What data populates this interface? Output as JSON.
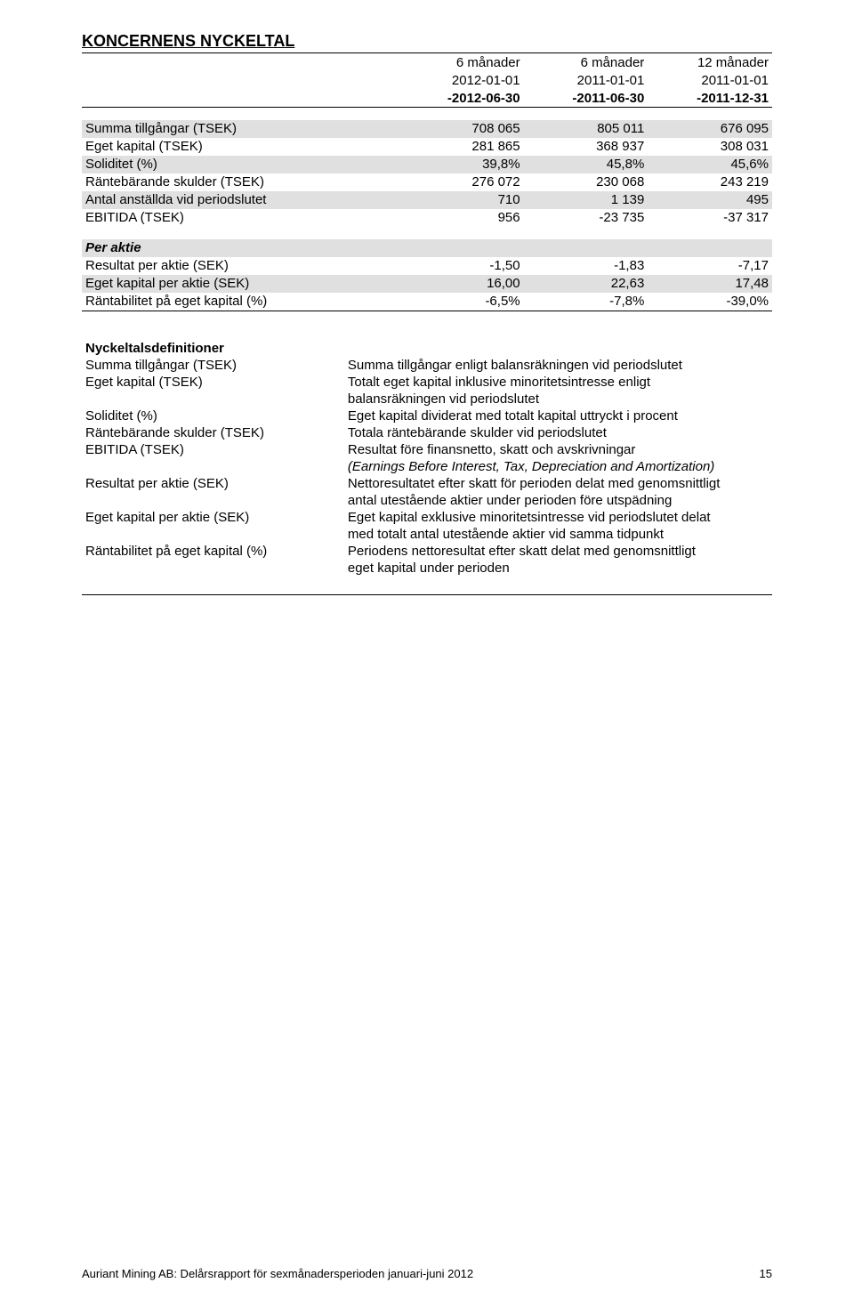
{
  "title": "KONCERNENS NYCKELTAL",
  "header": {
    "c1_line1": "6 månader",
    "c2_line1": "6 månader",
    "c3_line1": "12 månader",
    "c1_line2": "2012-01-01",
    "c2_line2": "2011-01-01",
    "c3_line2": "2011-01-01",
    "c1_line3": "-2012-06-30",
    "c2_line3": "-2011-06-30",
    "c3_line3": "-2011-12-31"
  },
  "rows_main": [
    {
      "label": "Summa tillgångar (TSEK)",
      "v1": "708 065",
      "v2": "805 011",
      "v3": "676 095",
      "hl": true
    },
    {
      "label": "Eget kapital (TSEK)",
      "v1": "281 865",
      "v2": "368 937",
      "v3": "308 031",
      "hl": false
    },
    {
      "label": "Soliditet (%)",
      "v1": "39,8%",
      "v2": "45,8%",
      "v3": "45,6%",
      "hl": true
    },
    {
      "label": "Räntebärande skulder (TSEK)",
      "v1": "276 072",
      "v2": "230 068",
      "v3": "243 219",
      "hl": false
    },
    {
      "label": "Antal anställda vid periodslutet",
      "v1": "710",
      "v2": "1 139",
      "v3": "495",
      "hl": true
    },
    {
      "label": "EBITIDA (TSEK)",
      "v1": "956",
      "v2": "-23 735",
      "v3": "-37 317",
      "hl": false
    }
  ],
  "per_aktie_heading": "Per aktie",
  "rows_per_aktie": [
    {
      "label": "Resultat per aktie (SEK)",
      "v1": "-1,50",
      "v2": "-1,83",
      "v3": "-7,17",
      "hl": false
    },
    {
      "label": "Eget kapital per aktie (SEK)",
      "v1": "16,00",
      "v2": "22,63",
      "v3": "17,48",
      "hl": true
    },
    {
      "label": "Räntabilitet på eget kapital (%)",
      "v1": "-6,5%",
      "v2": "-7,8%",
      "v3": "-39,0%",
      "hl": false
    }
  ],
  "def_heading": "Nyckeltalsdefinitioner",
  "defs": [
    {
      "label": "Summa tillgångar (TSEK)",
      "text1": "Summa tillgångar enligt balansräkningen vid periodslutet"
    },
    {
      "label": "Eget kapital (TSEK)",
      "text1": "Totalt eget kapital inklusive minoritetsintresse enligt",
      "text2": "balansräkningen vid periodslutet"
    },
    {
      "label": "Soliditet (%)",
      "text1": "Eget kapital dividerat med totalt kapital uttryckt i procent"
    },
    {
      "label": "Räntebärande skulder (TSEK)",
      "text1": "Totala räntebärande skulder vid periodslutet"
    },
    {
      "label": "EBITIDA (TSEK)",
      "text1": "Resultat före finansnetto, skatt och avskrivningar",
      "text2_italic": "(Earnings Before Interest, Tax, Depreciation and Amortization)"
    },
    {
      "label": "Resultat per aktie (SEK)",
      "text1": "Nettoresultatet efter skatt för perioden delat med genomsnittligt",
      "text2": "antal utestående aktier under perioden före utspädning"
    },
    {
      "label": "Eget kapital per aktie (SEK)",
      "text1": "Eget kapital exklusive minoritetsintresse vid periodslutet delat",
      "text2": "med totalt antal utestående aktier vid samma tidpunkt"
    },
    {
      "label": "Räntabilitet på eget kapital (%)",
      "text1": "Periodens nettoresultat efter skatt delat med genomsnittligt",
      "text2": "eget kapital under perioden"
    }
  ],
  "footer_text": "Auriant Mining AB: Delårsrapport för sexmånadersperioden januari-juni 2012",
  "footer_page": "15"
}
